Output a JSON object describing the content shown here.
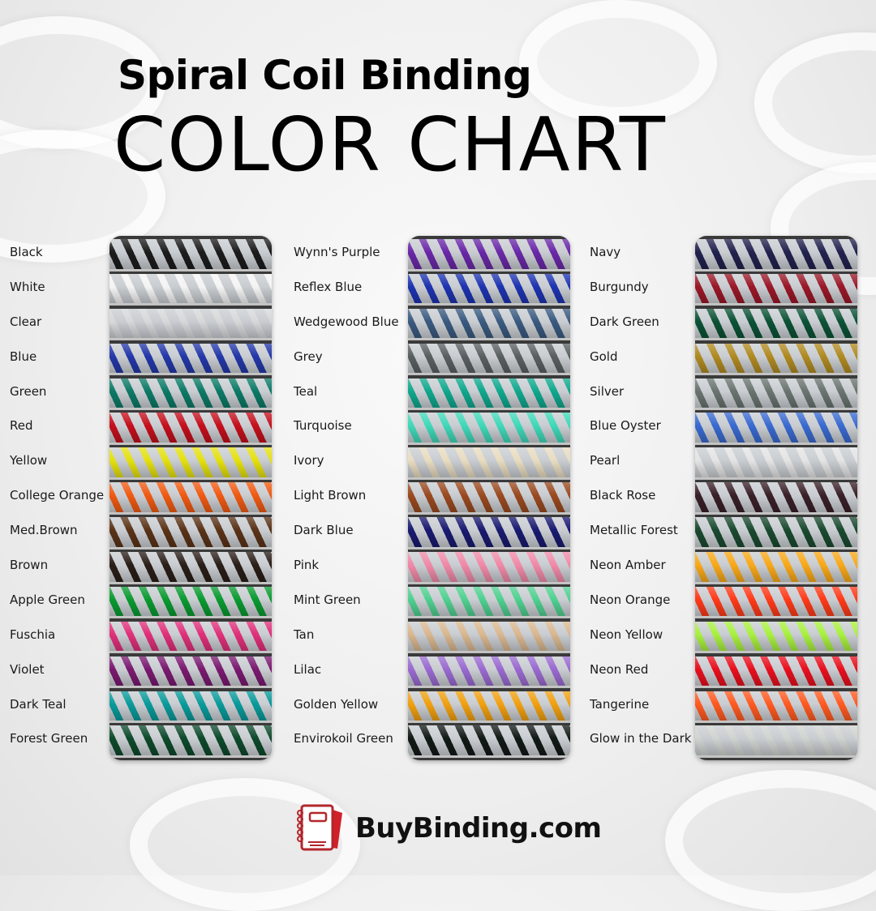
{
  "header": {
    "title_line1": "Spiral Coil Binding",
    "title_line2": "COLOR CHART"
  },
  "columns": [
    {
      "items": [
        {
          "label": "Black",
          "color": "#1c1c1c"
        },
        {
          "label": "White",
          "color": "#f4f4f4"
        },
        {
          "label": "Clear",
          "color": "#d6d8da"
        },
        {
          "label": "Blue",
          "color": "#2438a8"
        },
        {
          "label": "Green",
          "color": "#0d7a66"
        },
        {
          "label": "Red",
          "color": "#c4101c"
        },
        {
          "label": "Yellow",
          "color": "#e4e010"
        },
        {
          "label": "College Orange",
          "color": "#f05a12"
        },
        {
          "label": "Med.Brown",
          "color": "#5a3318"
        },
        {
          "label": "Brown",
          "color": "#2a1e18"
        },
        {
          "label": "Apple Green",
          "color": "#0a9a30"
        },
        {
          "label": "Fuschia",
          "color": "#e0307a"
        },
        {
          "label": "Violet",
          "color": "#7a1a70"
        },
        {
          "label": "Dark Teal",
          "color": "#0a9a9a"
        },
        {
          "label": "Forest Green",
          "color": "#0e4a2c"
        }
      ]
    },
    {
      "items": [
        {
          "label": "Wynn's Purple",
          "color": "#6a28a8"
        },
        {
          "label": "Reflex Blue",
          "color": "#1e34b0"
        },
        {
          "label": "Wedgewood Blue",
          "color": "#3a5a80"
        },
        {
          "label": "Grey",
          "color": "#5a6062"
        },
        {
          "label": "Teal",
          "color": "#10a88e"
        },
        {
          "label": "Turquoise",
          "color": "#40d8b8"
        },
        {
          "label": "Ivory",
          "color": "#e8dcc0"
        },
        {
          "label": "Light Brown",
          "color": "#9a4a20"
        },
        {
          "label": "Dark Blue",
          "color": "#1a1a70"
        },
        {
          "label": "Pink",
          "color": "#f08aa8"
        },
        {
          "label": "Mint Green",
          "color": "#50d090"
        },
        {
          "label": "Tan",
          "color": "#d8b890"
        },
        {
          "label": "Lilac",
          "color": "#9a6ad0"
        },
        {
          "label": "Golden Yellow",
          "color": "#f0a010"
        },
        {
          "label": "Envirokoil Green",
          "color": "#121a16"
        }
      ]
    },
    {
      "items": [
        {
          "label": "Navy",
          "color": "#22224e"
        },
        {
          "label": "Burgundy",
          "color": "#9a1828"
        },
        {
          "label": "Dark Green",
          "color": "#0c5236"
        },
        {
          "label": "Gold",
          "color": "#b08a22"
        },
        {
          "label": "Silver",
          "color": "#6a7470"
        },
        {
          "label": "Blue Oyster",
          "color": "#3a6ad0"
        },
        {
          "label": "Pearl",
          "color": "#e4e4e4"
        },
        {
          "label": "Black Rose",
          "color": "#3a2028"
        },
        {
          "label": "Metallic Forest",
          "color": "#1a4a30"
        },
        {
          "label": "Neon Amber",
          "color": "#f8a818"
        },
        {
          "label": "Neon Orange",
          "color": "#ff3a18"
        },
        {
          "label": "Neon Yellow",
          "color": "#a8f040"
        },
        {
          "label": "Neon Red",
          "color": "#e8101e"
        },
        {
          "label": "Tangerine",
          "color": "#ff5a20"
        },
        {
          "label": "Glow in the Dark",
          "color": "#d0d4d0"
        }
      ]
    }
  ],
  "brand": {
    "name": "BuyBinding.com",
    "logo_icon": "notebook-icon",
    "accent": "#b3262b"
  }
}
